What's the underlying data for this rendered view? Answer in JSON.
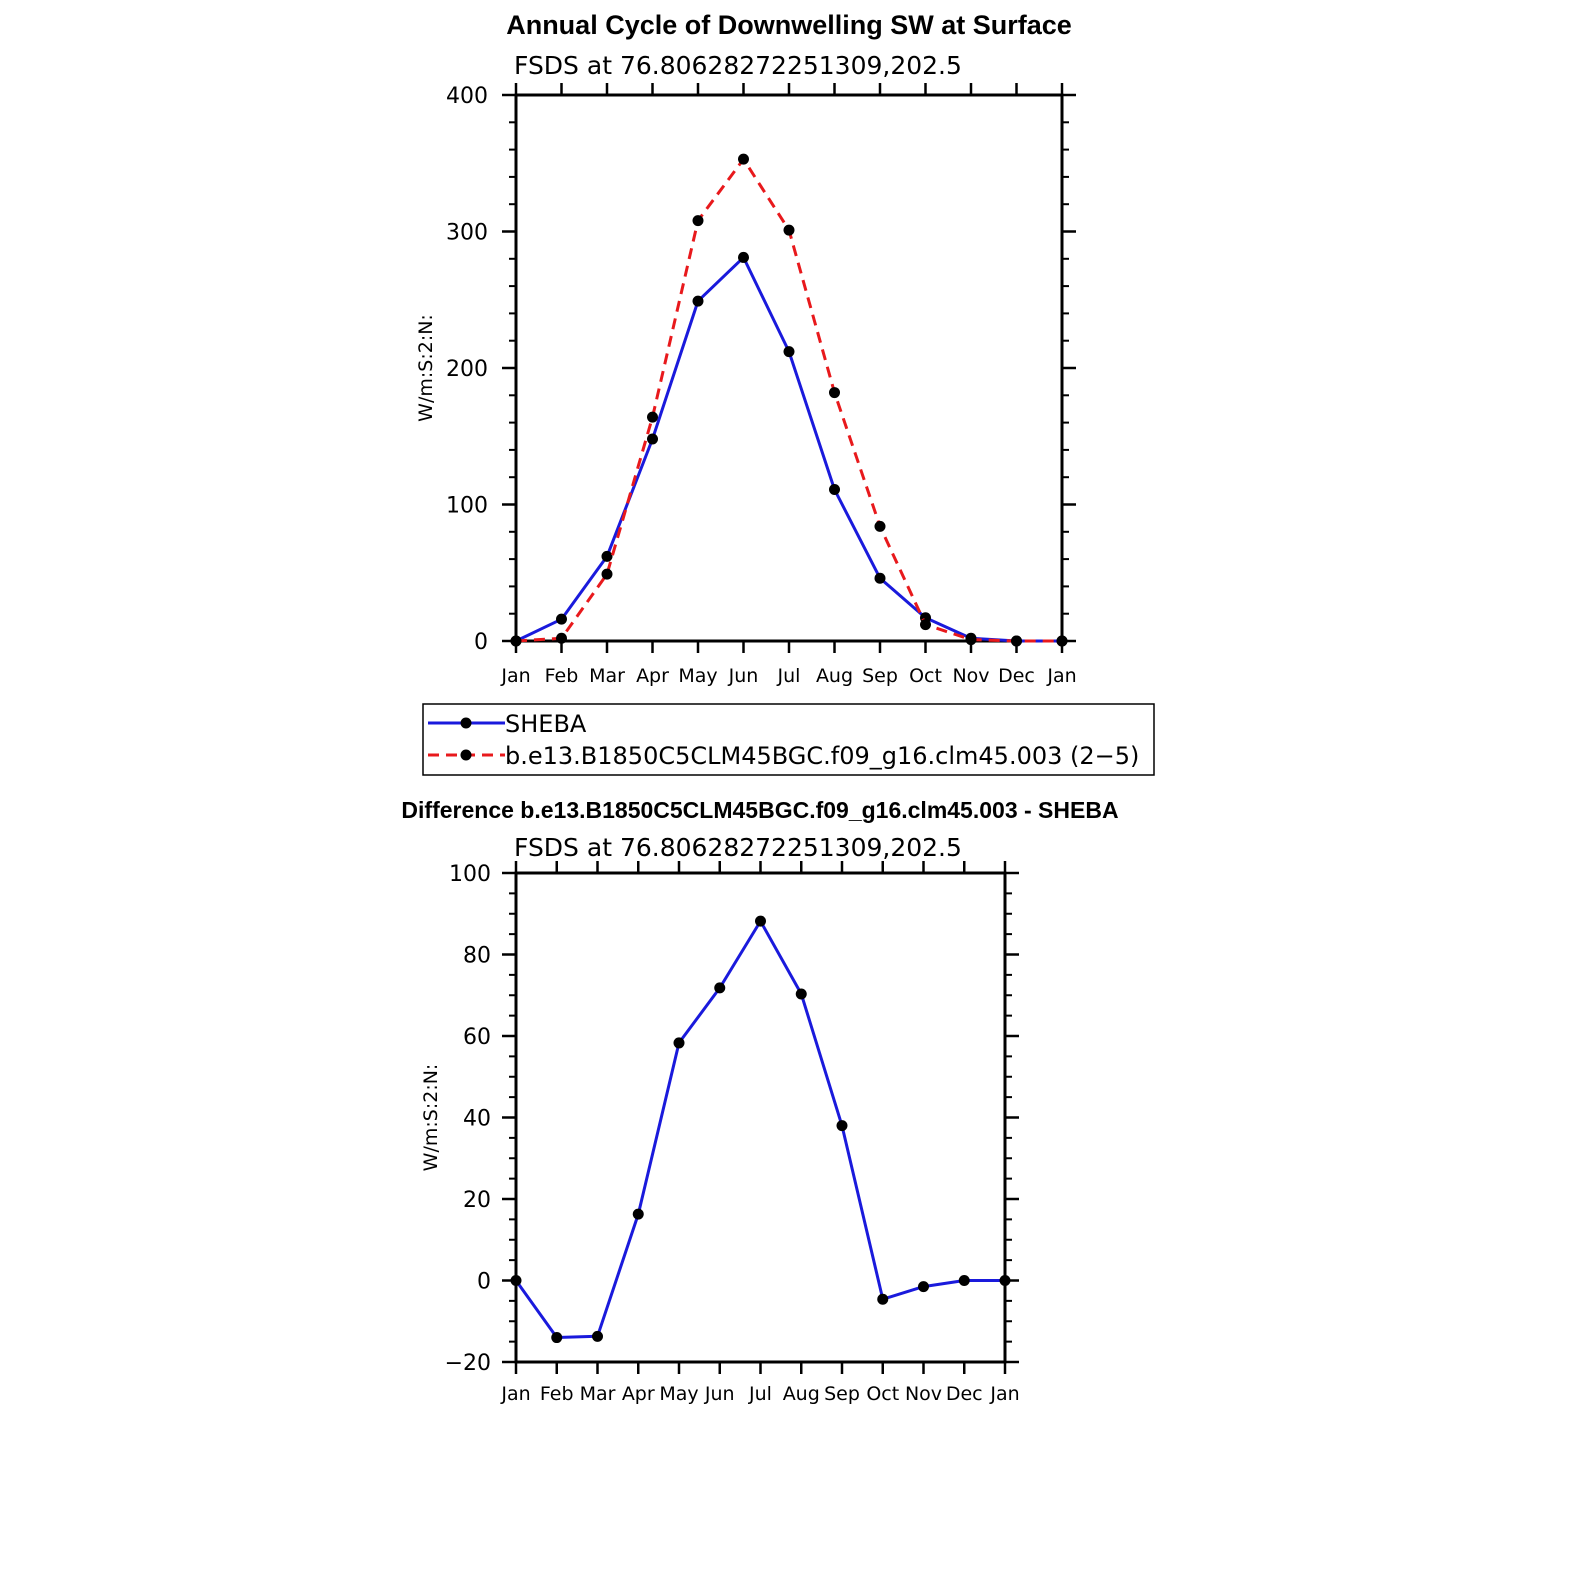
{
  "colors": {
    "sheba": "#1a1adc",
    "model": "#e8191c",
    "marker": "#000000",
    "axis": "#000000"
  },
  "chart_data": [
    {
      "type": "line",
      "title": "Annual Cycle of Downwelling SW at Surface",
      "subtitle": "FSDS  at  76.80628272251309,202.5",
      "xlabel": "",
      "ylabel": "W/m:S:2:N:",
      "categories": [
        "Jan",
        "Feb",
        "Mar",
        "Apr",
        "May",
        "Jun",
        "Jul",
        "Aug",
        "Sep",
        "Oct",
        "Nov",
        "Dec",
        "Jan"
      ],
      "ylim": [
        0,
        400
      ],
      "yticks": [
        0,
        100,
        200,
        300,
        400
      ],
      "grid": false,
      "legend": "bottom",
      "series": [
        {
          "name": "SHEBA",
          "style": "solid",
          "values": [
            0,
            16,
            62,
            148,
            249,
            281,
            212,
            111,
            46,
            17,
            2,
            0,
            0
          ]
        },
        {
          "name": "b.e13.B1850C5CLM45BGC.f09_g16.clm45.003 (2−5)",
          "style": "dashed",
          "values": [
            0,
            2,
            49,
            164,
            308,
            353,
            301,
            182,
            84,
            12,
            1,
            0,
            0
          ]
        }
      ]
    },
    {
      "type": "line",
      "title": "Difference b.e13.B1850C5CLM45BGC.f09_g16.clm45.003 - SHEBA",
      "subtitle": "FSDS  at  76.80628272251309,202.5",
      "xlabel": "",
      "ylabel": "W/m:S:2:N:",
      "categories": [
        "Jan",
        "Feb",
        "Mar",
        "Apr",
        "May",
        "Jun",
        "Jul",
        "Aug",
        "Sep",
        "Oct",
        "Nov",
        "Dec",
        "Jan"
      ],
      "ylim": [
        -20,
        100
      ],
      "yticks": [
        -20,
        0,
        20,
        40,
        60,
        80,
        100
      ],
      "grid": false,
      "series": [
        {
          "style": "solid",
          "values": [
            0,
            -14,
            -13.7,
            16.3,
            58.3,
            71.8,
            88.2,
            70.3,
            38,
            -4.6,
            -1.5,
            0,
            0
          ]
        }
      ]
    }
  ]
}
